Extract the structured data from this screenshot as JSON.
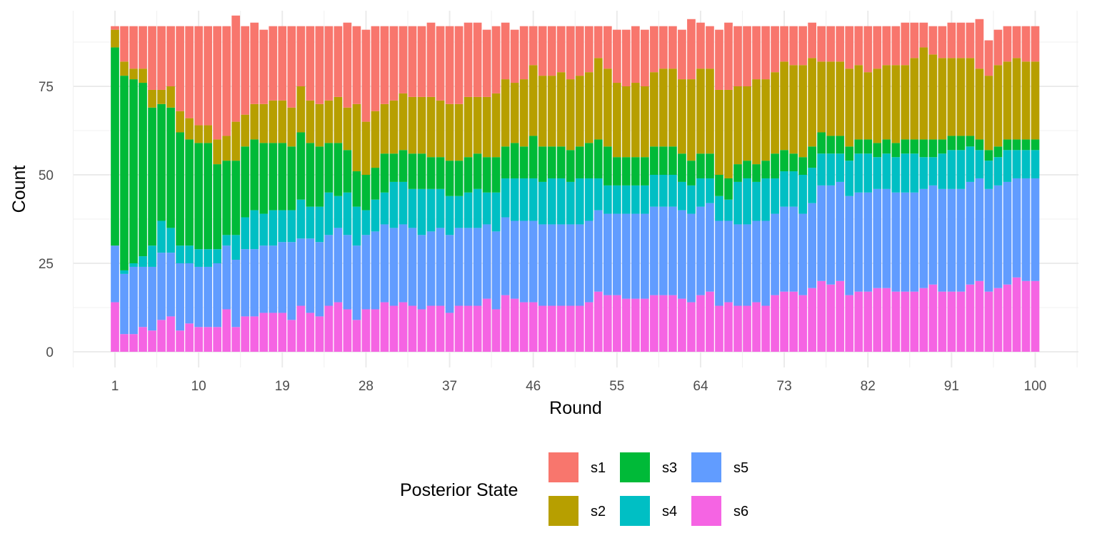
{
  "chart_data": {
    "type": "bar",
    "stacked": true,
    "xlabel": "Round",
    "ylabel": "Count",
    "x_ticks": [
      1,
      10,
      19,
      28,
      37,
      46,
      55,
      64,
      73,
      82,
      91,
      100
    ],
    "y_ticks": [
      0,
      25,
      50,
      75
    ],
    "ylim": [
      0,
      92
    ],
    "xlim": [
      1,
      100
    ],
    "grid": true,
    "legend": {
      "title": "Posterior State",
      "placement": "bottom"
    },
    "total_per_round": 92,
    "series": [
      {
        "name": "s6",
        "color": "#F564E3",
        "values": [
          14,
          5,
          5,
          7,
          6,
          9,
          10,
          6,
          8,
          7,
          7,
          7,
          12,
          7,
          10,
          10,
          11,
          11,
          11,
          9,
          13,
          11,
          10,
          13,
          14,
          12,
          9,
          12,
          12,
          14,
          13,
          14,
          13,
          12,
          13,
          13,
          11,
          13,
          13,
          13,
          15,
          12,
          16,
          15,
          14,
          14,
          13,
          13,
          13,
          13,
          13,
          14,
          17,
          16,
          16,
          15,
          15,
          15,
          16,
          16,
          16,
          15,
          14,
          16,
          17,
          13,
          14,
          13,
          13,
          14,
          13,
          16,
          17,
          17,
          16,
          18,
          20,
          19,
          20,
          16,
          17,
          17,
          18,
          18,
          17,
          17,
          17,
          18,
          19,
          17,
          17,
          17,
          19,
          20,
          17,
          18,
          19,
          21,
          20,
          20
        ]
      },
      {
        "name": "s5",
        "color": "#619CFF",
        "values": [
          16,
          17,
          19,
          17,
          18,
          19,
          18,
          19,
          17,
          17,
          17,
          18,
          18,
          19,
          19,
          19,
          19,
          19,
          20,
          22,
          19,
          21,
          21,
          20,
          21,
          21,
          21,
          21,
          22,
          22,
          22,
          22,
          22,
          21,
          21,
          22,
          22,
          22,
          22,
          22,
          21,
          22,
          22,
          22,
          23,
          23,
          23,
          23,
          23,
          23,
          23,
          23,
          23,
          23,
          23,
          24,
          24,
          24,
          25,
          25,
          25,
          25,
          25,
          25,
          25,
          24,
          23,
          23,
          23,
          23,
          24,
          23,
          24,
          24,
          23,
          24,
          27,
          28,
          28,
          28,
          28,
          28,
          28,
          28,
          28,
          28,
          28,
          28,
          28,
          29,
          29,
          29,
          29,
          29,
          29,
          29,
          29,
          28,
          29,
          29
        ]
      },
      {
        "name": "s4",
        "color": "#00BFC4",
        "values": [
          0,
          1,
          1,
          3,
          6,
          9,
          7,
          5,
          5,
          5,
          5,
          4,
          3,
          7,
          9,
          11,
          9,
          10,
          9,
          9,
          11,
          9,
          10,
          12,
          9,
          12,
          11,
          7,
          9,
          9,
          13,
          12,
          11,
          13,
          12,
          11,
          11,
          9,
          10,
          11,
          9,
          11,
          11,
          12,
          12,
          12,
          12,
          13,
          13,
          12,
          13,
          12,
          9,
          8,
          8,
          8,
          8,
          8,
          9,
          9,
          9,
          8,
          8,
          8,
          7,
          7,
          6,
          12,
          13,
          11,
          12,
          10,
          10,
          10,
          11,
          10,
          9,
          9,
          8,
          10,
          11,
          11,
          9,
          10,
          10,
          11,
          11,
          9,
          8,
          10,
          11,
          11,
          10,
          8,
          8,
          8,
          9,
          8,
          8,
          8
        ]
      },
      {
        "name": "s3",
        "color": "#00BA38",
        "values": [
          56,
          55,
          52,
          49,
          39,
          33,
          34,
          32,
          30,
          30,
          30,
          24,
          21,
          21,
          20,
          20,
          20,
          19,
          19,
          18,
          19,
          18,
          17,
          14,
          15,
          12,
          10,
          10,
          9,
          11,
          8,
          9,
          10,
          10,
          9,
          9,
          10,
          10,
          10,
          10,
          10,
          10,
          9,
          10,
          9,
          12,
          10,
          9,
          9,
          9,
          9,
          10,
          11,
          11,
          8,
          8,
          8,
          8,
          8,
          8,
          8,
          8,
          7,
          7,
          7,
          6,
          6,
          5,
          5,
          5,
          5,
          7,
          6,
          5,
          5,
          6,
          6,
          5,
          5,
          4,
          4,
          4,
          4,
          4,
          4,
          4,
          4,
          5,
          5,
          4,
          4,
          4,
          3,
          3,
          3,
          3,
          3,
          3,
          3,
          3
        ]
      },
      {
        "name": "s2",
        "color": "#B79F00",
        "values": [
          5,
          4,
          3,
          4,
          5,
          4,
          6,
          6,
          6,
          5,
          5,
          7,
          7,
          11,
          9,
          10,
          11,
          12,
          12,
          11,
          13,
          12,
          12,
          12,
          13,
          12,
          19,
          15,
          16,
          14,
          15,
          16,
          16,
          16,
          17,
          16,
          16,
          16,
          17,
          16,
          17,
          18,
          19,
          17,
          19,
          20,
          20,
          20,
          21,
          20,
          20,
          20,
          23,
          22,
          21,
          20,
          21,
          20,
          21,
          22,
          22,
          21,
          23,
          24,
          24,
          24,
          25,
          22,
          21,
          24,
          23,
          23,
          25,
          25,
          26,
          25,
          20,
          21,
          21,
          22,
          21,
          19,
          21,
          21,
          22,
          21,
          23,
          26,
          24,
          23,
          22,
          22,
          22,
          20,
          21,
          23,
          22,
          23,
          22,
          22
        ]
      },
      {
        "name": "s1",
        "color": "#F8766D",
        "values": [
          1,
          10,
          12,
          12,
          18,
          18,
          17,
          24,
          26,
          28,
          28,
          32,
          31,
          30,
          25,
          23,
          21,
          21,
          21,
          23,
          17,
          21,
          22,
          21,
          20,
          24,
          22,
          26,
          24,
          22,
          21,
          19,
          20,
          20,
          21,
          21,
          22,
          22,
          21,
          21,
          19,
          19,
          16,
          15,
          15,
          11,
          14,
          14,
          13,
          15,
          14,
          13,
          9,
          12,
          15,
          16,
          16,
          16,
          13,
          12,
          12,
          14,
          17,
          13,
          12,
          17,
          19,
          17,
          17,
          15,
          15,
          13,
          10,
          11,
          11,
          10,
          10,
          10,
          10,
          12,
          11,
          13,
          12,
          11,
          11,
          12,
          10,
          7,
          8,
          9,
          10,
          10,
          10,
          14,
          10,
          10,
          10,
          9,
          10,
          10
        ]
      }
    ]
  }
}
